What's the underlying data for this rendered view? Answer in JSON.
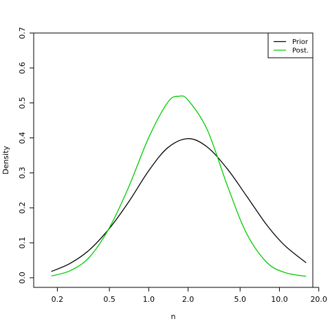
{
  "chart_data": {
    "type": "line",
    "xlabel": "n",
    "ylabel": "Density",
    "x_scale": "log",
    "xlim": [
      0.16,
      18
    ],
    "ylim": [
      0,
      0.7
    ],
    "x_ticks": [
      0.2,
      0.5,
      1.0,
      2.0,
      5.0,
      10.0,
      20.0
    ],
    "x_tick_labels": [
      "0.2",
      "0.5",
      "1.0",
      "2.0",
      "5.0",
      "10.0",
      "20.0"
    ],
    "y_ticks": [
      0.0,
      0.1,
      0.2,
      0.3,
      0.4,
      0.5,
      0.6,
      0.7
    ],
    "y_tick_labels": [
      "0.0",
      "0.1",
      "0.2",
      "0.3",
      "0.4",
      "0.5",
      "0.6",
      "0.7"
    ],
    "grid": false,
    "legend_position": "top-right",
    "series": [
      {
        "name": "Prior",
        "color": "#000000",
        "x": [
          0.18,
          0.25,
          0.35,
          0.5,
          0.7,
          1.0,
          1.4,
          2.0,
          2.8,
          4.0,
          5.6,
          8.0,
          11.0,
          16.0
        ],
        "y": [
          0.018,
          0.041,
          0.079,
          0.141,
          0.216,
          0.306,
          0.372,
          0.398,
          0.374,
          0.311,
          0.234,
          0.151,
          0.092,
          0.043
        ]
      },
      {
        "name": "Post.",
        "color": "#00cc00",
        "x": [
          0.18,
          0.25,
          0.35,
          0.5,
          0.7,
          1.0,
          1.4,
          1.7,
          2.0,
          2.8,
          4.0,
          5.6,
          8.0,
          11.0,
          16.0
        ],
        "y": [
          0.005,
          0.02,
          0.058,
          0.143,
          0.258,
          0.401,
          0.502,
          0.519,
          0.508,
          0.424,
          0.263,
          0.127,
          0.044,
          0.015,
          0.004
        ]
      }
    ]
  }
}
